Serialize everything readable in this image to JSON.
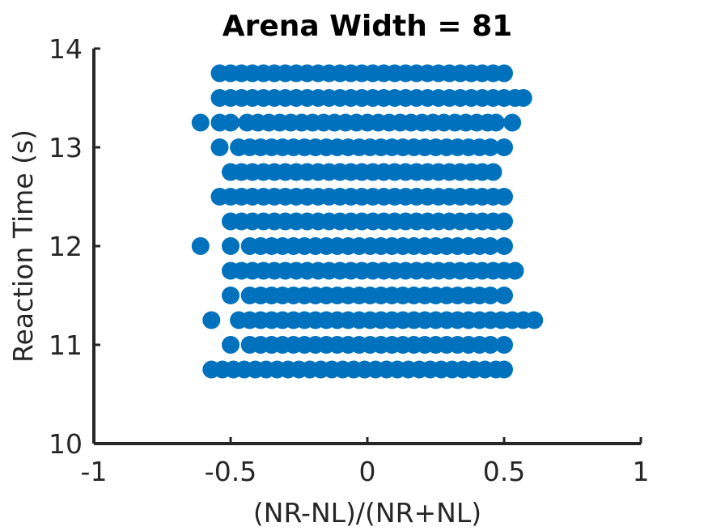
{
  "chart_data": {
    "type": "scatter",
    "title": "Arena Width =  81",
    "xlabel": "(NR-NL)/(NR+NL)",
    "ylabel": "Reaction Time (s)",
    "xlim": [
      -1,
      1
    ],
    "ylim": [
      10,
      14
    ],
    "xticks": [
      -1,
      -0.5,
      0,
      0.5,
      1
    ],
    "xtick_labels": [
      "-1",
      "-0.5",
      "0",
      "0.5",
      "1"
    ],
    "yticks": [
      10,
      11,
      12,
      13,
      14
    ],
    "ytick_labels": [
      "10",
      "11",
      "12",
      "13",
      "14"
    ],
    "grid": false,
    "marker_color": "#0072BD",
    "rows": [
      {
        "y": 13.75,
        "x": [
          -0.54,
          -0.5,
          -0.46,
          -0.42,
          -0.38,
          -0.34,
          -0.3,
          -0.26,
          -0.22,
          -0.18,
          -0.14,
          -0.1,
          -0.06,
          -0.02,
          0.02,
          0.06,
          0.1,
          0.14,
          0.18,
          0.22,
          0.26,
          0.3,
          0.34,
          0.38,
          0.42,
          0.46,
          0.5
        ]
      },
      {
        "y": 13.5,
        "x": [
          -0.54,
          -0.5,
          -0.46,
          -0.42,
          -0.38,
          -0.34,
          -0.3,
          -0.26,
          -0.22,
          -0.18,
          -0.14,
          -0.1,
          -0.06,
          -0.02,
          0.02,
          0.06,
          0.1,
          0.14,
          0.18,
          0.22,
          0.26,
          0.3,
          0.34,
          0.38,
          0.42,
          0.46,
          0.5,
          0.54,
          0.57
        ]
      },
      {
        "y": 13.25,
        "x": [
          -0.61,
          -0.54,
          -0.5,
          -0.44,
          -0.4,
          -0.36,
          -0.32,
          -0.28,
          -0.24,
          -0.2,
          -0.16,
          -0.12,
          -0.08,
          -0.04,
          0.0,
          0.04,
          0.08,
          0.12,
          0.16,
          0.2,
          0.24,
          0.28,
          0.32,
          0.36,
          0.4,
          0.44,
          0.47,
          0.53
        ]
      },
      {
        "y": 13.0,
        "x": [
          -0.54,
          -0.47,
          -0.43,
          -0.39,
          -0.35,
          -0.31,
          -0.27,
          -0.23,
          -0.19,
          -0.15,
          -0.11,
          -0.07,
          -0.03,
          0.01,
          0.05,
          0.09,
          0.13,
          0.17,
          0.21,
          0.25,
          0.29,
          0.33,
          0.37,
          0.41,
          0.45,
          0.5
        ]
      },
      {
        "y": 12.75,
        "x": [
          -0.5,
          -0.46,
          -0.42,
          -0.38,
          -0.34,
          -0.3,
          -0.26,
          -0.22,
          -0.18,
          -0.14,
          -0.1,
          -0.06,
          -0.02,
          0.02,
          0.06,
          0.1,
          0.14,
          0.18,
          0.22,
          0.26,
          0.3,
          0.34,
          0.38,
          0.42,
          0.46
        ]
      },
      {
        "y": 12.5,
        "x": [
          -0.54,
          -0.5,
          -0.46,
          -0.42,
          -0.38,
          -0.34,
          -0.3,
          -0.26,
          -0.22,
          -0.18,
          -0.14,
          -0.1,
          -0.06,
          -0.02,
          0.02,
          0.06,
          0.1,
          0.14,
          0.18,
          0.22,
          0.26,
          0.3,
          0.34,
          0.38,
          0.42,
          0.46,
          0.5
        ]
      },
      {
        "y": 12.25,
        "x": [
          -0.5,
          -0.46,
          -0.42,
          -0.38,
          -0.34,
          -0.3,
          -0.26,
          -0.22,
          -0.18,
          -0.14,
          -0.1,
          -0.06,
          -0.02,
          0.02,
          0.06,
          0.1,
          0.14,
          0.18,
          0.22,
          0.26,
          0.3,
          0.34,
          0.38,
          0.42,
          0.46,
          0.5
        ]
      },
      {
        "y": 12.0,
        "x": [
          -0.61,
          -0.5,
          -0.43,
          -0.39,
          -0.35,
          -0.31,
          -0.27,
          -0.23,
          -0.19,
          -0.15,
          -0.11,
          -0.07,
          -0.03,
          0.01,
          0.05,
          0.09,
          0.13,
          0.17,
          0.21,
          0.25,
          0.29,
          0.33,
          0.37,
          0.41,
          0.45,
          0.5
        ]
      },
      {
        "y": 11.75,
        "x": [
          -0.5,
          -0.46,
          -0.42,
          -0.38,
          -0.34,
          -0.3,
          -0.26,
          -0.22,
          -0.18,
          -0.14,
          -0.1,
          -0.06,
          -0.02,
          0.02,
          0.06,
          0.1,
          0.14,
          0.18,
          0.22,
          0.26,
          0.3,
          0.34,
          0.38,
          0.42,
          0.46,
          0.5,
          0.54
        ]
      },
      {
        "y": 11.5,
        "x": [
          -0.5,
          -0.43,
          -0.39,
          -0.35,
          -0.31,
          -0.27,
          -0.23,
          -0.19,
          -0.15,
          -0.11,
          -0.07,
          -0.03,
          0.01,
          0.05,
          0.09,
          0.13,
          0.17,
          0.21,
          0.25,
          0.29,
          0.33,
          0.37,
          0.41,
          0.45,
          0.5
        ]
      },
      {
        "y": 11.25,
        "x": [
          -0.57,
          -0.47,
          -0.43,
          -0.39,
          -0.35,
          -0.31,
          -0.27,
          -0.23,
          -0.19,
          -0.15,
          -0.11,
          -0.07,
          -0.03,
          0.01,
          0.05,
          0.09,
          0.13,
          0.17,
          0.21,
          0.25,
          0.29,
          0.33,
          0.37,
          0.41,
          0.45,
          0.49,
          0.53,
          0.57,
          0.61
        ]
      },
      {
        "y": 11.0,
        "x": [
          -0.5,
          -0.43,
          -0.39,
          -0.35,
          -0.31,
          -0.27,
          -0.23,
          -0.19,
          -0.15,
          -0.11,
          -0.07,
          -0.03,
          0.01,
          0.05,
          0.09,
          0.13,
          0.17,
          0.21,
          0.25,
          0.29,
          0.33,
          0.37,
          0.41,
          0.45,
          0.5
        ]
      },
      {
        "y": 10.75,
        "x": [
          -0.57,
          -0.53,
          -0.49,
          -0.45,
          -0.41,
          -0.37,
          -0.33,
          -0.29,
          -0.25,
          -0.21,
          -0.17,
          -0.13,
          -0.09,
          -0.05,
          -0.01,
          0.03,
          0.07,
          0.11,
          0.15,
          0.19,
          0.23,
          0.27,
          0.31,
          0.35,
          0.39,
          0.43,
          0.47,
          0.5
        ]
      }
    ]
  }
}
